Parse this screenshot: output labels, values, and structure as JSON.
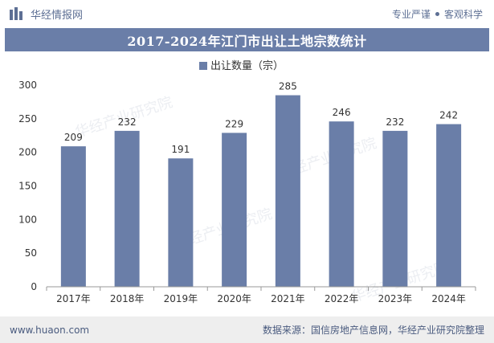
{
  "header": {
    "brand_name": "华经情报网",
    "tag_left": "专业严谨",
    "tag_right": "客观科学"
  },
  "footer": {
    "website": "www.huaon.com",
    "source": "数据来源：国信房地产信息网，华经产业研究院整理"
  },
  "watermark": "华经产业研究院",
  "colors": {
    "bar": "#6a7ea8",
    "title_bg": "#6a7ea8",
    "text": "#333333",
    "axis": "#999999"
  },
  "chart_data": {
    "type": "bar",
    "title": "2017-2024年江门市出让土地宗数统计",
    "legend_position": "top-center",
    "grid": false,
    "categories": [
      "2017年",
      "2018年",
      "2019年",
      "2020年",
      "2021年",
      "2022年",
      "2023年",
      "2024年"
    ],
    "series": [
      {
        "name": "出让数量（宗）",
        "values": [
          209,
          232,
          191,
          229,
          285,
          246,
          232,
          242
        ]
      }
    ],
    "ylim": [
      0,
      300
    ],
    "yticks": [
      0,
      50,
      100,
      150,
      200,
      250,
      300
    ]
  }
}
